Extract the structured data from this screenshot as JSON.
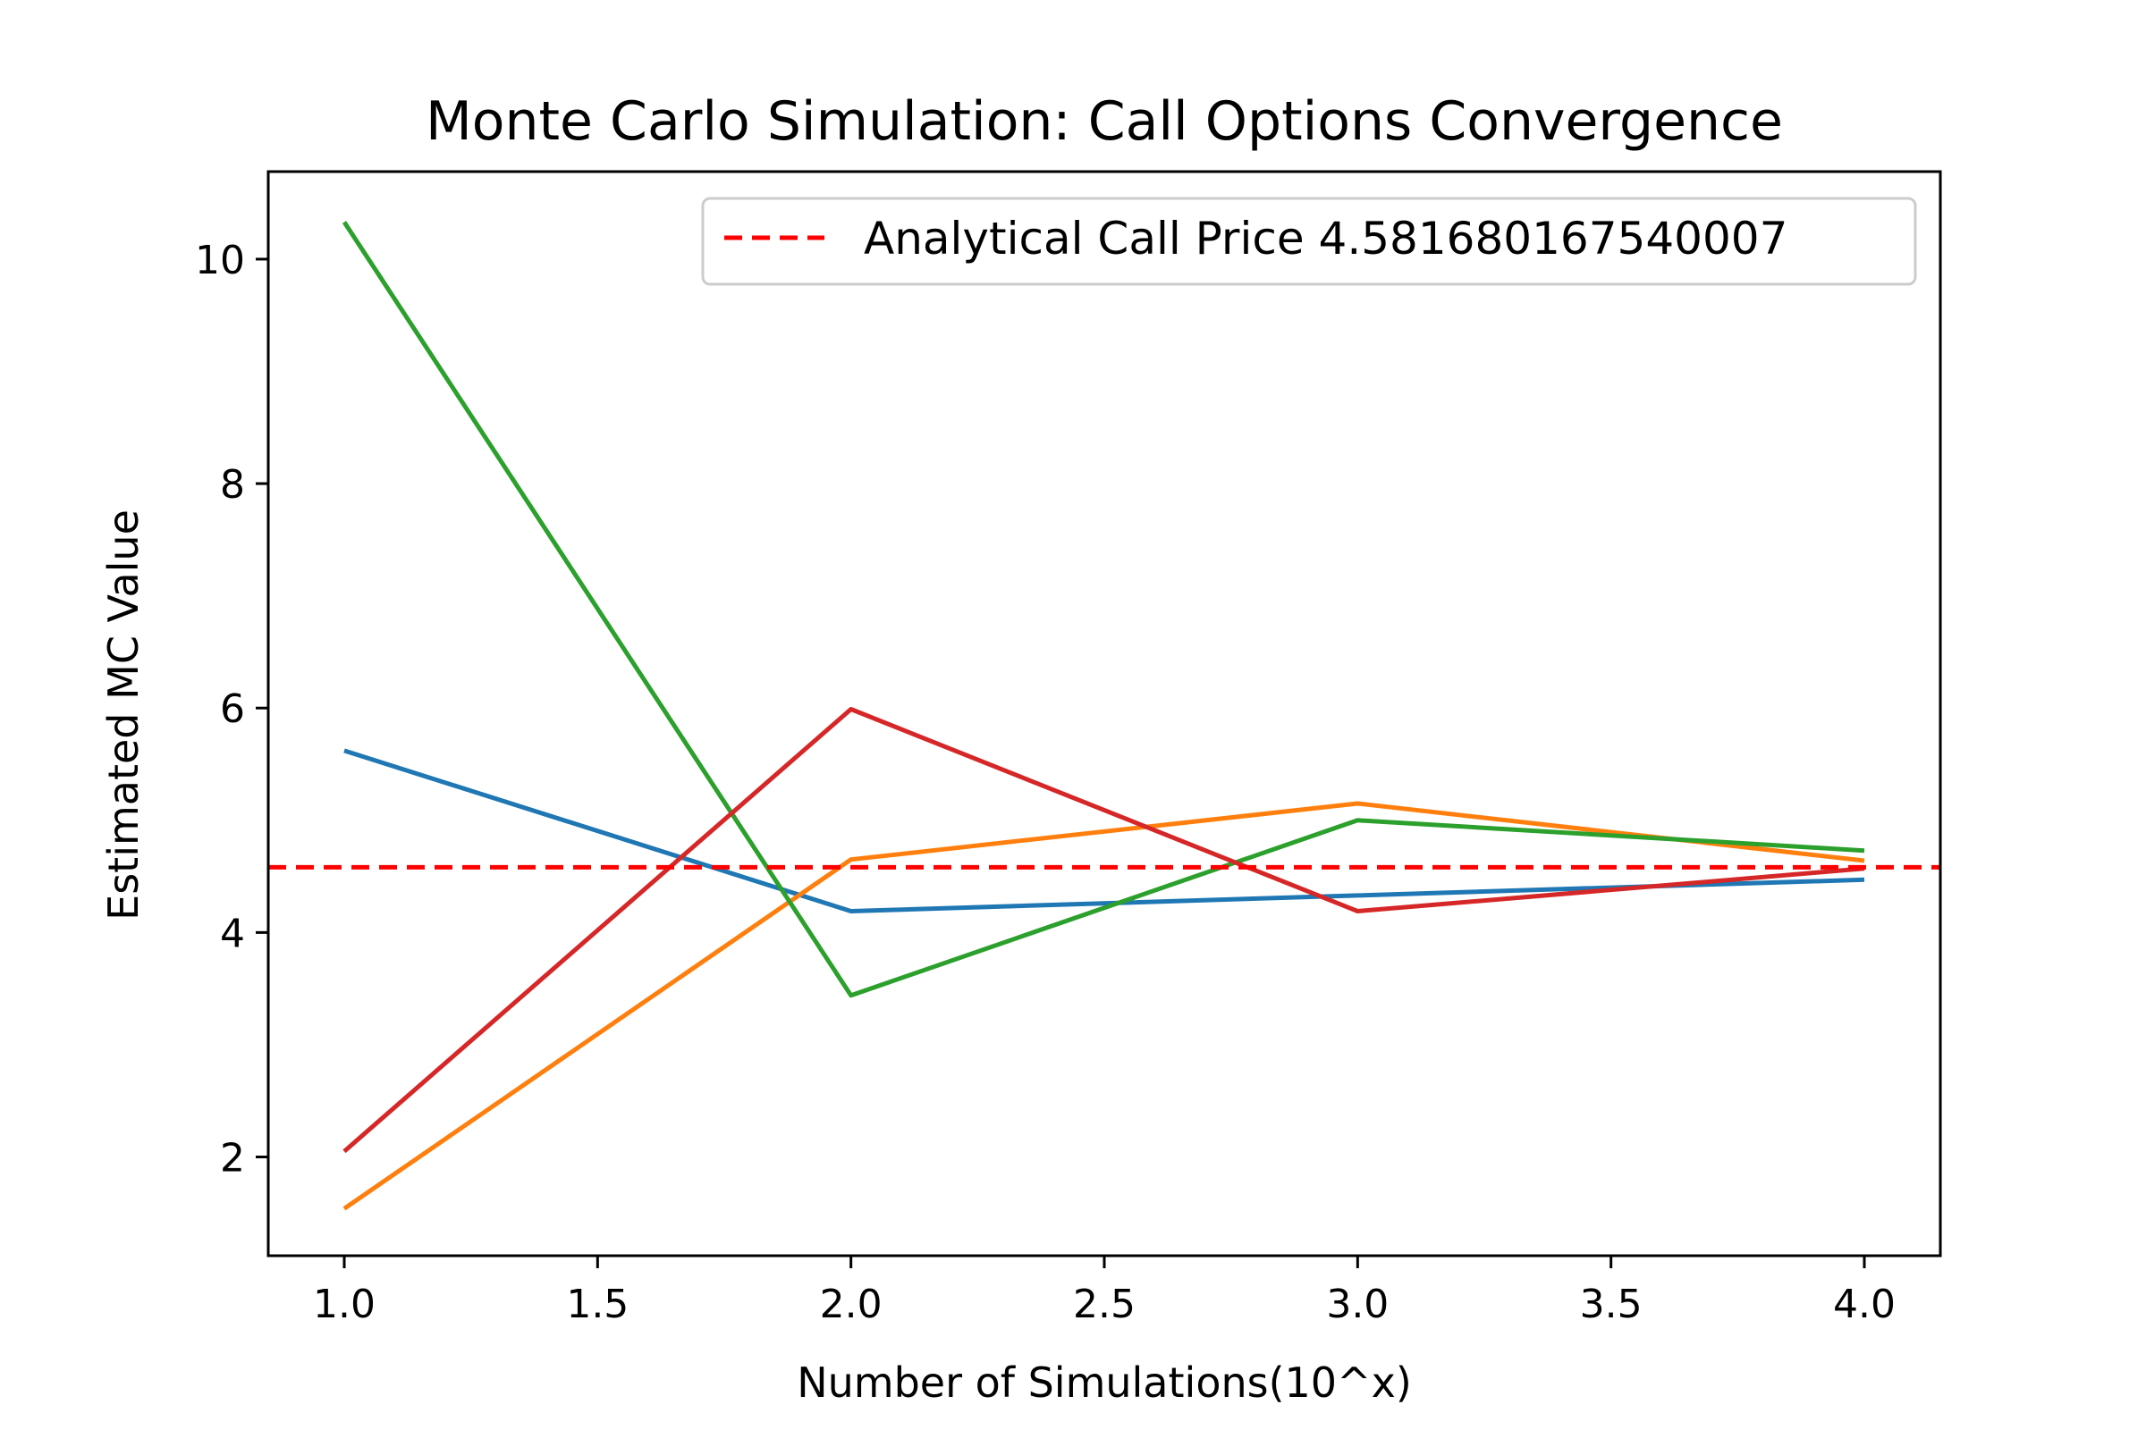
{
  "chart_data": {
    "type": "line",
    "title": "Monte Carlo Simulation: Call Options Convergence",
    "xlabel": "Number of Simulations(10^x)",
    "ylabel": "Estimated MC Value",
    "xlim": [
      0.85,
      4.15
    ],
    "ylim": [
      1.12,
      10.78
    ],
    "x_ticks": [
      "1.0",
      "1.5",
      "2.0",
      "2.5",
      "3.0",
      "3.5",
      "4.0"
    ],
    "y_ticks": [
      "2",
      "4",
      "6",
      "8",
      "10"
    ],
    "x": [
      1,
      2,
      3,
      4
    ],
    "series": [
      {
        "color": "#1f77b4",
        "values": [
          5.62,
          4.19,
          4.33,
          4.47
        ]
      },
      {
        "color": "#ff7f0e",
        "values": [
          1.54,
          4.65,
          5.15,
          4.64
        ]
      },
      {
        "color": "#2ca02c",
        "values": [
          10.33,
          3.44,
          5.0,
          4.73
        ]
      },
      {
        "color": "#d62728",
        "values": [
          2.05,
          5.99,
          4.19,
          4.57
        ]
      }
    ],
    "reference_line": {
      "label": "Analytical Call Price 4.581680167540007",
      "value": 4.581680167540007,
      "color": "#ff0000",
      "style": "dashed"
    },
    "legend": {
      "position": "top-right"
    },
    "grid": false
  }
}
